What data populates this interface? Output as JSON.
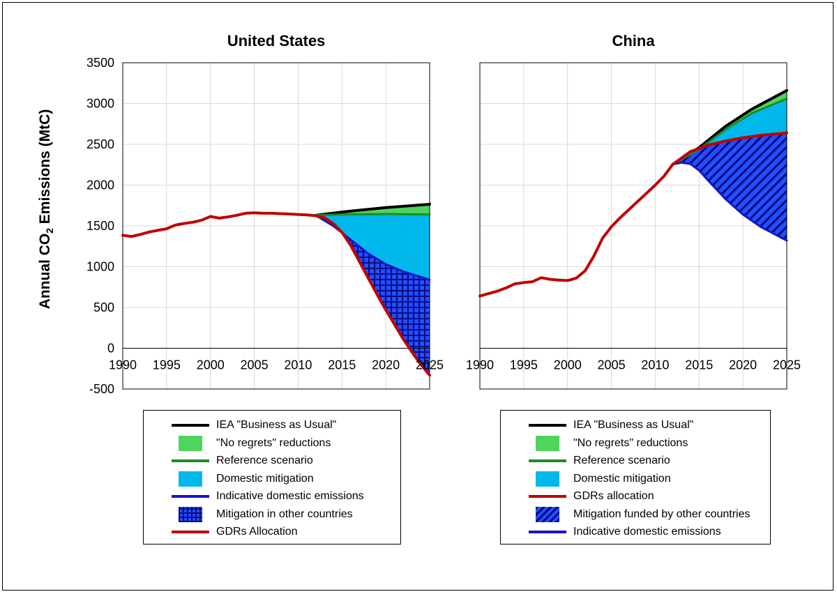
{
  "colors": {
    "bau": "#000000",
    "no_regrets": "#4fd45e",
    "reference": "#1e8a24",
    "domestic_mitigation": "#00b8ec",
    "indicative": "#1414c8",
    "gdrs": "#c00000",
    "hatch_blue": "#2050ff",
    "hatch_dark": "#0a0a80"
  },
  "y_axis_title": {
    "prefix": "Annual CO",
    "sub": "2",
    "suffix": " Emissions (MtC)"
  },
  "chart_data": [
    {
      "type": "area",
      "title": "United States",
      "x_ticks": [
        "1990",
        "1995",
        "2000",
        "2005",
        "2010",
        "2015",
        "2020",
        "2025"
      ],
      "y_ticks": [
        "3500",
        "3000",
        "2500",
        "2000",
        "1500",
        "1000",
        "500",
        "0",
        "-500"
      ],
      "xlim": [
        1990,
        2025
      ],
      "ylim": [
        -500,
        3500
      ],
      "series": [
        {
          "key": "bau",
          "name": "IEA \"Business as Usual\"",
          "x": [
            2012,
            2015,
            2020,
            2025
          ],
          "y": [
            1630,
            1670,
            1725,
            1765
          ]
        },
        {
          "key": "reference",
          "name": "Reference scenario",
          "x": [
            2012,
            2015,
            2020,
            2025
          ],
          "y": [
            1630,
            1640,
            1645,
            1640
          ]
        },
        {
          "key": "indicative",
          "name": "Indicative domestic emissions",
          "x": [
            2012,
            2014,
            2016,
            2018,
            2020,
            2022,
            2025
          ],
          "y": [
            1630,
            1500,
            1330,
            1160,
            1030,
            940,
            840
          ]
        },
        {
          "key": "gdrs",
          "name": "GDRs Allocation",
          "x": [
            1990,
            1991,
            1992,
            1993,
            1994,
            1995,
            1996,
            1997,
            1998,
            1999,
            2000,
            2001,
            2002,
            2003,
            2004,
            2005,
            2006,
            2007,
            2008,
            2009,
            2010,
            2011,
            2012,
            2013,
            2014,
            2015,
            2016,
            2017,
            2018,
            2019,
            2020,
            2021,
            2022,
            2023,
            2024,
            2025
          ],
          "y": [
            1385,
            1370,
            1395,
            1425,
            1445,
            1465,
            1510,
            1530,
            1545,
            1570,
            1615,
            1595,
            1610,
            1630,
            1655,
            1660,
            1655,
            1655,
            1650,
            1645,
            1640,
            1635,
            1625,
            1600,
            1530,
            1420,
            1260,
            1060,
            860,
            660,
            470,
            290,
            110,
            -50,
            -200,
            -330
          ]
        }
      ],
      "legend": [
        {
          "label": "IEA \"Business as Usual\"",
          "kind": "line",
          "key": "bau"
        },
        {
          "label": "\"No regrets\" reductions",
          "kind": "area",
          "key": "no_regrets"
        },
        {
          "label": "Reference scenario",
          "kind": "line",
          "key": "reference"
        },
        {
          "label": "Domestic mitigation",
          "kind": "area",
          "key": "domestic_mitigation"
        },
        {
          "label": "Indicative domestic emissions",
          "kind": "line",
          "key": "indicative"
        },
        {
          "label": "Mitigation in other countries",
          "kind": "grid",
          "key": "hatch_blue"
        },
        {
          "label": "GDRs Allocation",
          "kind": "line",
          "key": "gdrs"
        }
      ]
    },
    {
      "type": "area",
      "title": "China",
      "x_ticks": [
        "1990",
        "1995",
        "2000",
        "2005",
        "2010",
        "2015",
        "2020",
        "2025"
      ],
      "y_ticks": [],
      "xlim": [
        1990,
        2025
      ],
      "ylim": [
        -500,
        3500
      ],
      "series": [
        {
          "key": "bau",
          "name": "IEA \"Business as Usual\"",
          "x": [
            2012,
            2015,
            2018,
            2021,
            2025
          ],
          "y": [
            2255,
            2460,
            2720,
            2930,
            3160
          ]
        },
        {
          "key": "reference",
          "name": "Reference scenario",
          "x": [
            2012,
            2015,
            2018,
            2021,
            2025
          ],
          "y": [
            2255,
            2440,
            2680,
            2880,
            3060
          ]
        },
        {
          "key": "domestic_top",
          "name": "Domestic mitigation upper edge",
          "x": [
            2012,
            2015,
            2018,
            2021,
            2025
          ],
          "y": [
            2255,
            2410,
            2600,
            2790,
            3000
          ]
        },
        {
          "key": "gdrs",
          "name": "GDRs allocation",
          "x": [
            1990,
            1991,
            1992,
            1993,
            1994,
            1995,
            1996,
            1997,
            1998,
            1999,
            2000,
            2001,
            2002,
            2003,
            2004,
            2005,
            2006,
            2007,
            2008,
            2009,
            2010,
            2011,
            2012,
            2014,
            2016,
            2018,
            2020,
            2022,
            2025
          ],
          "y": [
            640,
            670,
            700,
            740,
            790,
            805,
            815,
            865,
            845,
            835,
            830,
            860,
            950,
            1130,
            1350,
            1490,
            1600,
            1700,
            1800,
            1900,
            2000,
            2110,
            2255,
            2410,
            2490,
            2540,
            2580,
            2610,
            2640
          ]
        },
        {
          "key": "indicative",
          "name": "Indicative domestic emissions",
          "x": [
            2012,
            2013,
            2014,
            2015,
            2016,
            2018,
            2020,
            2022,
            2025
          ],
          "y": [
            2255,
            2275,
            2260,
            2180,
            2060,
            1830,
            1640,
            1490,
            1320
          ]
        }
      ],
      "legend": [
        {
          "label": "IEA \"Business as Usual\"",
          "kind": "line",
          "key": "bau"
        },
        {
          "label": "\"No regrets\" reductions",
          "kind": "area",
          "key": "no_regrets"
        },
        {
          "label": "Reference scenario",
          "kind": "line",
          "key": "reference"
        },
        {
          "label": "Domestic  mitigation",
          "kind": "area",
          "key": "domestic_mitigation"
        },
        {
          "label": "GDRs allocation",
          "kind": "line",
          "key": "gdrs"
        },
        {
          "label": "Mitigation funded by other countries",
          "kind": "diag",
          "key": "hatch_blue"
        },
        {
          "label": "Indicative domestic emissions",
          "kind": "line",
          "key": "indicative"
        }
      ]
    }
  ]
}
